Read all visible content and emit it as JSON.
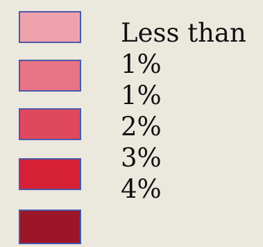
{
  "legend": {
    "items": [
      {
        "label": "Less than",
        "color": "#eea2ac"
      },
      {
        "label": "1%",
        "color": "#e77384"
      },
      {
        "label": "1%",
        "color": "#e0485d"
      },
      {
        "label": "2%",
        "color": "#d62036"
      },
      {
        "label": "3%",
        "color": "#9a1628"
      }
    ],
    "extra_label": "4%"
  }
}
